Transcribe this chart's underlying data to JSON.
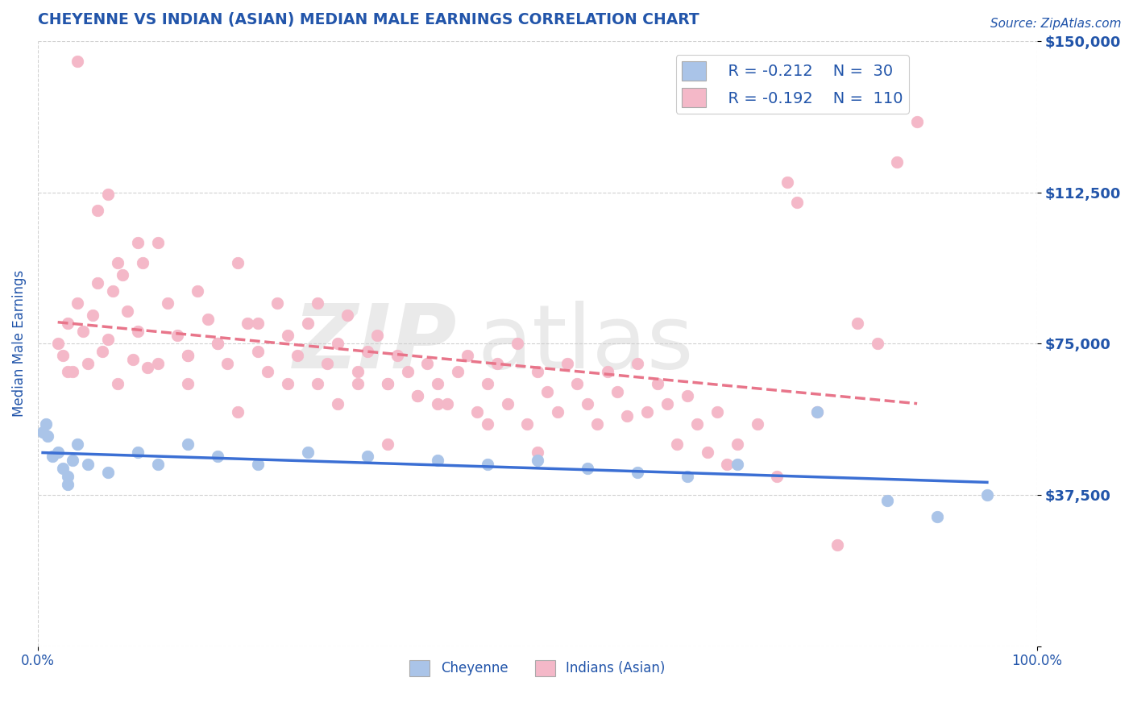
{
  "title": "CHEYENNE VS INDIAN (ASIAN) MEDIAN MALE EARNINGS CORRELATION CHART",
  "source": "Source: ZipAtlas.com",
  "ylabel": "Median Male Earnings",
  "xlim": [
    0,
    1
  ],
  "ylim": [
    0,
    150000
  ],
  "yticks": [
    0,
    37500,
    75000,
    112500,
    150000
  ],
  "ytick_labels": [
    "",
    "$37,500",
    "$75,000",
    "$112,500",
    "$150,000"
  ],
  "xtick_labels": [
    "0.0%",
    "100.0%"
  ],
  "legend_labels": [
    "Cheyenne",
    "Indians (Asian)"
  ],
  "legend_r": [
    "R = -0.212",
    "R = -0.192"
  ],
  "legend_n": [
    "N =  30",
    "N =  110"
  ],
  "cheyenne_color": "#aac4e8",
  "indian_color": "#f4b8c8",
  "cheyenne_line_color": "#3b6fd4",
  "indian_line_color": "#e8758a",
  "title_color": "#2255aa",
  "source_color": "#2255aa",
  "axis_label_color": "#2255aa",
  "tick_color": "#2255aa",
  "legend_text_color": "#2255aa",
  "background_color": "#ffffff",
  "cheyenne_scatter_x": [
    0.005,
    0.008,
    0.01,
    0.015,
    0.02,
    0.025,
    0.03,
    0.03,
    0.035,
    0.04,
    0.05,
    0.07,
    0.1,
    0.12,
    0.15,
    0.18,
    0.22,
    0.27,
    0.33,
    0.4,
    0.45,
    0.5,
    0.55,
    0.6,
    0.65,
    0.7,
    0.78,
    0.85,
    0.9,
    0.95
  ],
  "cheyenne_scatter_y": [
    53000,
    55000,
    52000,
    47000,
    48000,
    44000,
    42000,
    40000,
    46000,
    50000,
    45000,
    43000,
    48000,
    45000,
    50000,
    47000,
    45000,
    48000,
    47000,
    46000,
    45000,
    46000,
    44000,
    43000,
    42000,
    45000,
    58000,
    36000,
    32000,
    37500
  ],
  "indian_scatter_x": [
    0.02,
    0.025,
    0.03,
    0.035,
    0.04,
    0.045,
    0.05,
    0.055,
    0.06,
    0.065,
    0.07,
    0.075,
    0.08,
    0.085,
    0.09,
    0.095,
    0.1,
    0.105,
    0.11,
    0.12,
    0.13,
    0.14,
    0.15,
    0.16,
    0.17,
    0.18,
    0.19,
    0.2,
    0.21,
    0.22,
    0.23,
    0.24,
    0.25,
    0.26,
    0.27,
    0.28,
    0.29,
    0.3,
    0.31,
    0.32,
    0.33,
    0.34,
    0.35,
    0.36,
    0.37,
    0.38,
    0.39,
    0.4,
    0.41,
    0.42,
    0.43,
    0.44,
    0.45,
    0.46,
    0.47,
    0.48,
    0.49,
    0.5,
    0.51,
    0.52,
    0.53,
    0.54,
    0.55,
    0.56,
    0.57,
    0.58,
    0.59,
    0.6,
    0.61,
    0.62,
    0.63,
    0.64,
    0.65,
    0.66,
    0.67,
    0.68,
    0.69,
    0.7,
    0.72,
    0.74,
    0.75,
    0.76,
    0.78,
    0.8,
    0.82,
    0.84,
    0.86,
    0.88,
    0.3,
    0.35,
    0.1,
    0.08,
    0.12,
    0.15,
    0.07,
    0.06,
    0.04,
    0.03,
    0.25,
    0.2,
    0.4,
    0.45,
    0.5,
    0.35,
    0.15,
    0.18,
    0.22,
    0.28,
    0.32,
    0.38
  ],
  "indian_scatter_y": [
    75000,
    72000,
    80000,
    68000,
    85000,
    78000,
    70000,
    82000,
    90000,
    73000,
    76000,
    88000,
    65000,
    92000,
    83000,
    71000,
    78000,
    95000,
    69000,
    100000,
    85000,
    77000,
    72000,
    88000,
    81000,
    75000,
    70000,
    95000,
    80000,
    73000,
    68000,
    85000,
    77000,
    72000,
    80000,
    65000,
    70000,
    75000,
    82000,
    68000,
    73000,
    77000,
    65000,
    72000,
    68000,
    62000,
    70000,
    65000,
    60000,
    68000,
    72000,
    58000,
    65000,
    70000,
    60000,
    75000,
    55000,
    68000,
    63000,
    58000,
    70000,
    65000,
    60000,
    55000,
    68000,
    63000,
    57000,
    70000,
    58000,
    65000,
    60000,
    50000,
    62000,
    55000,
    48000,
    58000,
    45000,
    50000,
    55000,
    42000,
    115000,
    110000,
    58000,
    25000,
    80000,
    75000,
    120000,
    130000,
    60000,
    65000,
    100000,
    95000,
    70000,
    65000,
    112000,
    108000,
    145000,
    68000,
    65000,
    58000,
    60000,
    55000,
    48000,
    50000,
    72000,
    75000,
    80000,
    85000,
    65000,
    62000
  ]
}
